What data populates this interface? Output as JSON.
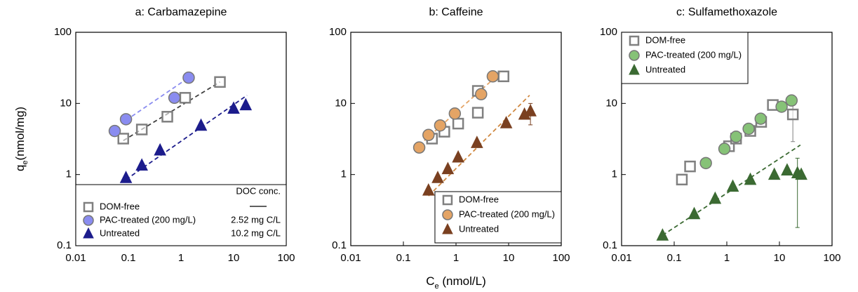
{
  "chart_data": [
    {
      "type": "scatter",
      "title": "a: Carbamazepine",
      "xscale": "log",
      "yscale": "log",
      "ylabel": [
        "q",
        "e",
        "(nmol/mg)"
      ],
      "xlim": [
        0.01,
        100
      ],
      "ylim": [
        0.1,
        100
      ],
      "xticks": [
        0.01,
        0.1,
        1,
        10,
        100
      ],
      "yticks": [
        0.1,
        1,
        10,
        100
      ],
      "legend": "lower left",
      "legend_title": "DOC conc.",
      "series": [
        {
          "name": "DOM-free",
          "marker": "square",
          "color": "#808080",
          "x": [
            0.08,
            0.18,
            0.55,
            1.2,
            5.5
          ],
          "values": [
            3.2,
            4.3,
            6.5,
            12,
            20
          ]
        },
        {
          "name": "PAC-treated (200 mg/L)",
          "doc": "2.52 mg C/L",
          "marker": "circle",
          "color": "#8a8cf0",
          "x": [
            0.055,
            0.09,
            0.75,
            1.4
          ],
          "values": [
            4.1,
            6,
            12,
            23
          ]
        },
        {
          "name": "Untreated",
          "doc": "10.2 mg C/L",
          "marker": "triangle",
          "color": "#1c1c8c",
          "x": [
            0.09,
            0.18,
            0.4,
            2.4,
            10,
            17
          ],
          "values": [
            0.9,
            1.35,
            2.2,
            4.9,
            8.5,
            9.5
          ]
        }
      ],
      "fit_lines": [
        {
          "color": "#404040",
          "x": [
            0.08,
            5.5
          ],
          "values": [
            3,
            20
          ]
        },
        {
          "color": "#8a8cf0",
          "x": [
            0.09,
            1.4
          ],
          "values": [
            5.8,
            23
          ]
        },
        {
          "color": "#1c1c8c",
          "x": [
            0.09,
            18
          ],
          "values": [
            0.85,
            13
          ]
        }
      ]
    },
    {
      "type": "scatter",
      "title": "b: Caffeine",
      "xscale": "log",
      "yscale": "log",
      "xlabel": [
        "C",
        "e",
        " (nmol/L)"
      ],
      "xlim": [
        0.01,
        100
      ],
      "ylim": [
        0.1,
        100
      ],
      "xticks": [
        0.01,
        0.1,
        1,
        10,
        100
      ],
      "yticks": [
        0.1,
        1,
        10,
        100
      ],
      "legend": "lower right",
      "series": [
        {
          "name": "DOM-free",
          "marker": "square",
          "color": "#808080",
          "x": [
            0.35,
            0.6,
            1.1,
            2.6,
            2.6,
            8
          ],
          "values": [
            3.2,
            4,
            5.2,
            7.4,
            15,
            24
          ]
        },
        {
          "name": "PAC-treated (200 mg/L)",
          "marker": "circle",
          "color": "#e4a465",
          "x": [
            0.2,
            0.3,
            0.5,
            0.95,
            3,
            5
          ],
          "values": [
            2.4,
            3.6,
            4.9,
            7.2,
            13.5,
            24
          ]
        },
        {
          "name": "Untreated",
          "marker": "triangle",
          "color": "#7a4020",
          "x": [
            0.3,
            0.45,
            0.7,
            1.1,
            2.5,
            9,
            20,
            26
          ],
          "values": [
            0.6,
            0.9,
            1.2,
            1.75,
            2.8,
            5.3,
            7,
            7.8
          ],
          "err_low": [
            null,
            null,
            null,
            null,
            null,
            null,
            null,
            5
          ],
          "err_high": [
            null,
            null,
            null,
            null,
            null,
            null,
            null,
            10
          ]
        }
      ],
      "fit_lines": [
        {
          "color": "#e4a465",
          "x": [
            0.25,
            7
          ],
          "values": [
            3,
            27
          ]
        },
        {
          "color": "#d08840",
          "x": [
            0.3,
            25
          ],
          "values": [
            0.5,
            13
          ]
        }
      ]
    },
    {
      "type": "scatter",
      "title": "c: Sulfamethoxazole",
      "xscale": "log",
      "yscale": "log",
      "xlim": [
        0.01,
        100
      ],
      "ylim": [
        0.1,
        100
      ],
      "xticks": [
        0.01,
        0.1,
        1,
        10,
        100
      ],
      "yticks": [
        0.1,
        1,
        10,
        100
      ],
      "legend": "upper left",
      "series": [
        {
          "name": "DOM-free",
          "marker": "square",
          "color": "#808080",
          "x": [
            0.14,
            0.2,
            1.1,
            1.5,
            2.8,
            4.5,
            7.5,
            18
          ],
          "values": [
            0.85,
            1.3,
            2.5,
            3.2,
            4.1,
            5.5,
            9.5,
            7
          ],
          "err_low": [
            null,
            null,
            null,
            null,
            null,
            null,
            null,
            2.9
          ],
          "err_high": [
            null,
            null,
            null,
            null,
            null,
            null,
            null,
            11
          ]
        },
        {
          "name": "PAC-treated (200 mg/L)",
          "marker": "circle",
          "color": "#86c277",
          "x": [
            0.4,
            0.9,
            1.5,
            2.6,
            4.4,
            11,
            17
          ],
          "values": [
            1.45,
            2.3,
            3.4,
            4.4,
            6.1,
            9,
            11
          ]
        },
        {
          "name": "Untreated",
          "marker": "triangle",
          "color": "#3b6a32",
          "x": [
            0.06,
            0.24,
            0.6,
            1.3,
            2.8,
            8,
            14,
            22,
            26
          ],
          "values": [
            0.14,
            0.28,
            0.46,
            0.68,
            0.85,
            1.0,
            1.15,
            1.05,
            1.0
          ],
          "err_low": [
            null,
            null,
            null,
            null,
            null,
            null,
            null,
            0.18,
            null
          ],
          "err_high": [
            null,
            null,
            null,
            null,
            null,
            null,
            null,
            1.7,
            null
          ]
        }
      ],
      "fit_lines": [
        {
          "color": "#3b6a32",
          "x": [
            0.06,
            25
          ],
          "values": [
            0.14,
            2.6
          ]
        }
      ]
    }
  ]
}
